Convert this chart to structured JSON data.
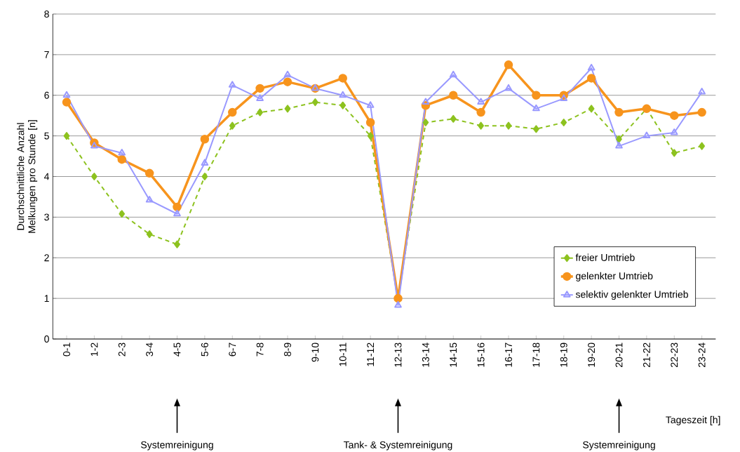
{
  "chart_data": {
    "type": "line",
    "ylabel": "Durchschnittliche Anzahl Melkungen pro Stunde [n]",
    "xlabel": "Tageszeit [h]",
    "categories": [
      "0-1",
      "1-2",
      "2-3",
      "3-4",
      "4-5",
      "5-6",
      "6-7",
      "7-8",
      "8-9",
      "9-10",
      "10-11",
      "11-12",
      "12-13",
      "13-14",
      "14-15",
      "15-16",
      "16-17",
      "17-18",
      "18-19",
      "19-20",
      "20-21",
      "21-22",
      "22-23",
      "23-24"
    ],
    "series": [
      {
        "name": "freier Umtrieb",
        "color": "#8dc21f",
        "marker": "diamond",
        "line_style": "dashed",
        "values": [
          5.0,
          4.0,
          3.08,
          2.58,
          2.33,
          4.0,
          5.25,
          5.58,
          5.67,
          5.83,
          5.75,
          5.0,
          1.0,
          5.33,
          5.42,
          5.25,
          5.25,
          5.17,
          5.33,
          5.67,
          4.92,
          5.67,
          4.58,
          4.75
        ]
      },
      {
        "name": "gelenkter Umtrieb",
        "color": "#f7941d",
        "marker": "circle",
        "line_style": "solid",
        "values": [
          5.83,
          4.83,
          4.42,
          4.08,
          3.25,
          4.92,
          5.58,
          6.17,
          6.33,
          6.17,
          6.42,
          5.33,
          1.0,
          5.75,
          6.0,
          5.58,
          6.75,
          6.0,
          6.0,
          6.42,
          5.58,
          5.67,
          5.5,
          5.58
        ]
      },
      {
        "name": "selektiv gelenkter Umtrieb",
        "color": "#9999ff",
        "marker": "triangle",
        "line_style": "solid",
        "values": [
          6.0,
          4.75,
          4.58,
          3.42,
          3.08,
          4.33,
          6.25,
          5.92,
          6.5,
          6.17,
          6.0,
          5.75,
          0.83,
          5.83,
          6.5,
          5.83,
          6.17,
          5.67,
          5.92,
          6.67,
          4.75,
          5.0,
          5.08,
          6.08
        ]
      }
    ],
    "ylim": [
      0,
      8
    ],
    "yticks": [
      0,
      1,
      2,
      3,
      4,
      5,
      6,
      7,
      8
    ],
    "grid": "y",
    "legend": "bottom right",
    "annotations": [
      "Systemreinigung",
      "Tank- & Systemreinigung",
      "Systemreinigung"
    ]
  }
}
